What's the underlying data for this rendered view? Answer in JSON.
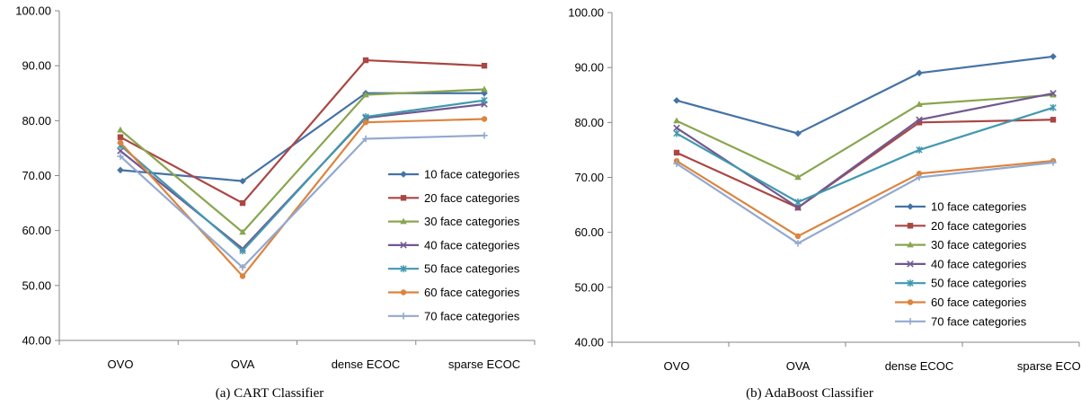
{
  "colors": {
    "10": "#4572A7",
    "20": "#AA4643",
    "30": "#89A54E",
    "40": "#71588F",
    "50": "#4198AF",
    "60": "#DB843D",
    "70": "#93A9CF"
  },
  "chart_data": [
    {
      "type": "line",
      "caption": "(a) CART Classifier",
      "categories": [
        "OVO",
        "OVA",
        "dense ECOC",
        "sparse ECOC"
      ],
      "ylim": [
        40,
        100
      ],
      "yticks": [
        "40.00",
        "50.00",
        "60.00",
        "70.00",
        "80.00",
        "90.00",
        "100.00"
      ],
      "legend_position": "right",
      "series": [
        {
          "name": "10 face categories",
          "marker": "diamond",
          "values": [
            71.0,
            69.0,
            85.0,
            85.0
          ]
        },
        {
          "name": "20 face categories",
          "marker": "square",
          "values": [
            77.0,
            65.0,
            91.0,
            90.0
          ]
        },
        {
          "name": "30 face categories",
          "marker": "triangle",
          "values": [
            78.3,
            59.7,
            84.7,
            85.7
          ]
        },
        {
          "name": "40 face categories",
          "marker": "x",
          "values": [
            74.5,
            56.7,
            80.5,
            83.0
          ]
        },
        {
          "name": "50 face categories",
          "marker": "star",
          "values": [
            75.5,
            56.3,
            80.7,
            83.7
          ]
        },
        {
          "name": "60 face categories",
          "marker": "circle",
          "values": [
            76.0,
            51.7,
            79.7,
            80.3
          ]
        },
        {
          "name": "70 face categories",
          "marker": "plus",
          "values": [
            73.5,
            53.3,
            76.7,
            77.3
          ]
        }
      ]
    },
    {
      "type": "line",
      "caption": "(b) AdaBoost Classifier",
      "categories": [
        "OVO",
        "OVA",
        "dense ECOC",
        "sparse ECOC"
      ],
      "ylim": [
        40,
        100
      ],
      "yticks": [
        "40.00",
        "50.00",
        "60.00",
        "70.00",
        "80.00",
        "90.00",
        "100.00"
      ],
      "legend_position": "right",
      "series": [
        {
          "name": "10 face categories",
          "marker": "diamond",
          "values": [
            84.0,
            78.0,
            89.0,
            92.0
          ]
        },
        {
          "name": "20 face categories",
          "marker": "square",
          "values": [
            74.5,
            64.5,
            80.0,
            80.5
          ]
        },
        {
          "name": "30 face categories",
          "marker": "triangle",
          "values": [
            80.3,
            70.0,
            83.3,
            85.0
          ]
        },
        {
          "name": "40 face categories",
          "marker": "x",
          "values": [
            79.0,
            64.5,
            80.5,
            85.3
          ]
        },
        {
          "name": "50 face categories",
          "marker": "star",
          "values": [
            78.0,
            65.5,
            75.0,
            82.7
          ]
        },
        {
          "name": "60 face categories",
          "marker": "circle",
          "values": [
            73.0,
            59.3,
            70.7,
            73.0
          ]
        },
        {
          "name": "70 face categories",
          "marker": "plus",
          "values": [
            72.5,
            58.0,
            70.0,
            72.7
          ]
        }
      ]
    }
  ]
}
